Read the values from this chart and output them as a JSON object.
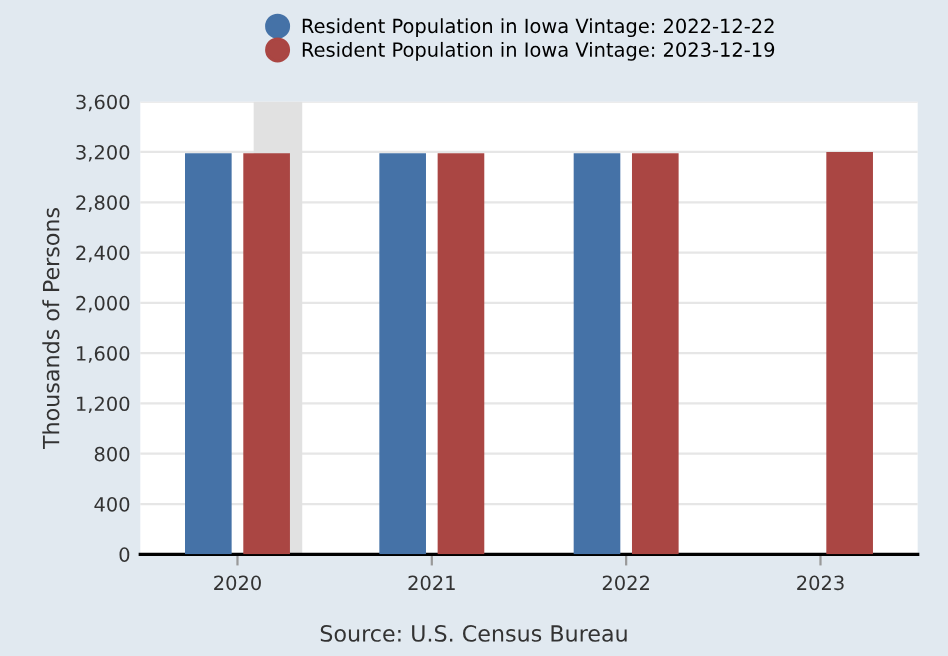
{
  "chart_data": {
    "type": "bar",
    "x": [
      "2020",
      "2021",
      "2022",
      "2023"
    ],
    "ylabel": "Thousands of Persons",
    "series": [
      {
        "name": "Resident Population in Iowa Vintage: 2022-12-22",
        "color": "#4572a7",
        "values": [
          3190,
          3190,
          3190,
          null
        ]
      },
      {
        "name": "Resident Population in Iowa Vintage: 2023-12-19",
        "color": "#aa4643",
        "values": [
          3190,
          3190,
          3190,
          3200
        ]
      }
    ],
    "xlim": [
      "2019-07",
      "2023-07"
    ],
    "xticks": [
      "2020",
      "2021",
      "2022",
      "2023"
    ],
    "ylim": [
      0,
      3600
    ],
    "yticks": [
      {
        "value": 0,
        "label": "0"
      },
      {
        "value": 400,
        "label": "400"
      },
      {
        "value": 800,
        "label": "800"
      },
      {
        "value": 1200,
        "label": "1,200"
      },
      {
        "value": 1600,
        "label": "1,600"
      },
      {
        "value": 2000,
        "label": "2,000"
      },
      {
        "value": 2400,
        "label": "2,400"
      },
      {
        "value": 2800,
        "label": "2,800"
      },
      {
        "value": 3200,
        "label": "3,200"
      },
      {
        "value": 3600,
        "label": "3,600"
      }
    ],
    "bands": [
      {
        "axis": "x",
        "from": "2020-02",
        "to": "2020-05",
        "color": "#e1e1e1"
      }
    ],
    "grid": "y",
    "legend": "top",
    "annotations": [
      "Source: U.S. Census Bureau"
    ]
  }
}
